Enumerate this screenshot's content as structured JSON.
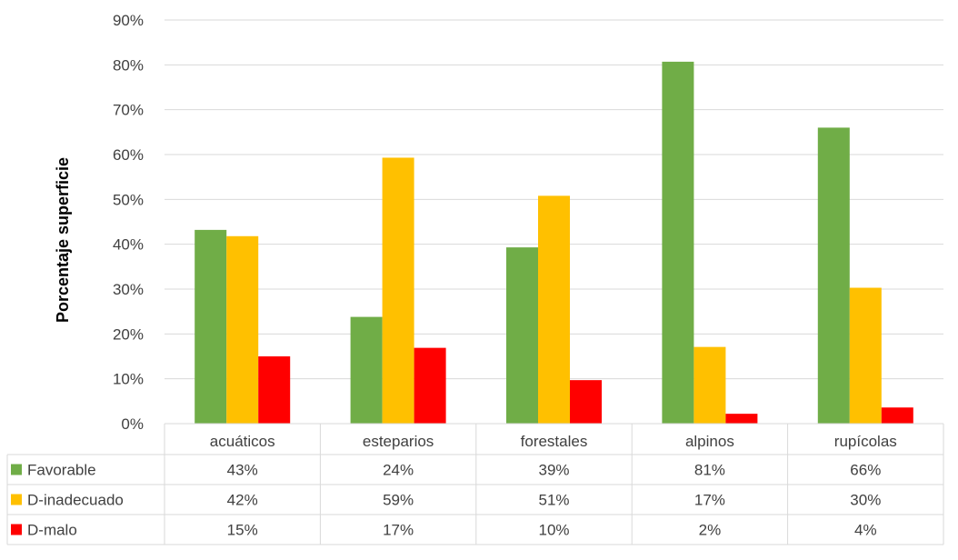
{
  "chart_data": {
    "type": "bar",
    "ylabel": "Porcentaje superficie",
    "xlabel": "",
    "title": "",
    "ylim": [
      0,
      90
    ],
    "yticks": [
      0,
      10,
      20,
      30,
      40,
      50,
      60,
      70,
      80,
      90
    ],
    "ytick_labels": [
      "0%",
      "10%",
      "20%",
      "30%",
      "40%",
      "50%",
      "60%",
      "70%",
      "80%",
      "90%"
    ],
    "grid": true,
    "legend": "data-table",
    "categories": [
      "acuáticos",
      "esteparios",
      "forestales",
      "alpinos",
      "rupícolas"
    ],
    "series": [
      {
        "name": "Favorable",
        "color": "#70AD47",
        "values": [
          43.2,
          23.8,
          39.3,
          80.7,
          66.0
        ],
        "labels": [
          "43%",
          "24%",
          "39%",
          "81%",
          "66%"
        ]
      },
      {
        "name": "D-inadecuado",
        "color": "#FFC000",
        "values": [
          41.8,
          59.3,
          50.8,
          17.1,
          30.3
        ],
        "labels": [
          "42%",
          "59%",
          "51%",
          "17%",
          "30%"
        ]
      },
      {
        "name": "D-malo",
        "color": "#FF0000",
        "values": [
          15.0,
          16.9,
          9.7,
          2.2,
          3.6
        ],
        "labels": [
          "15%",
          "17%",
          "10%",
          "2%",
          "4%"
        ]
      }
    ]
  }
}
